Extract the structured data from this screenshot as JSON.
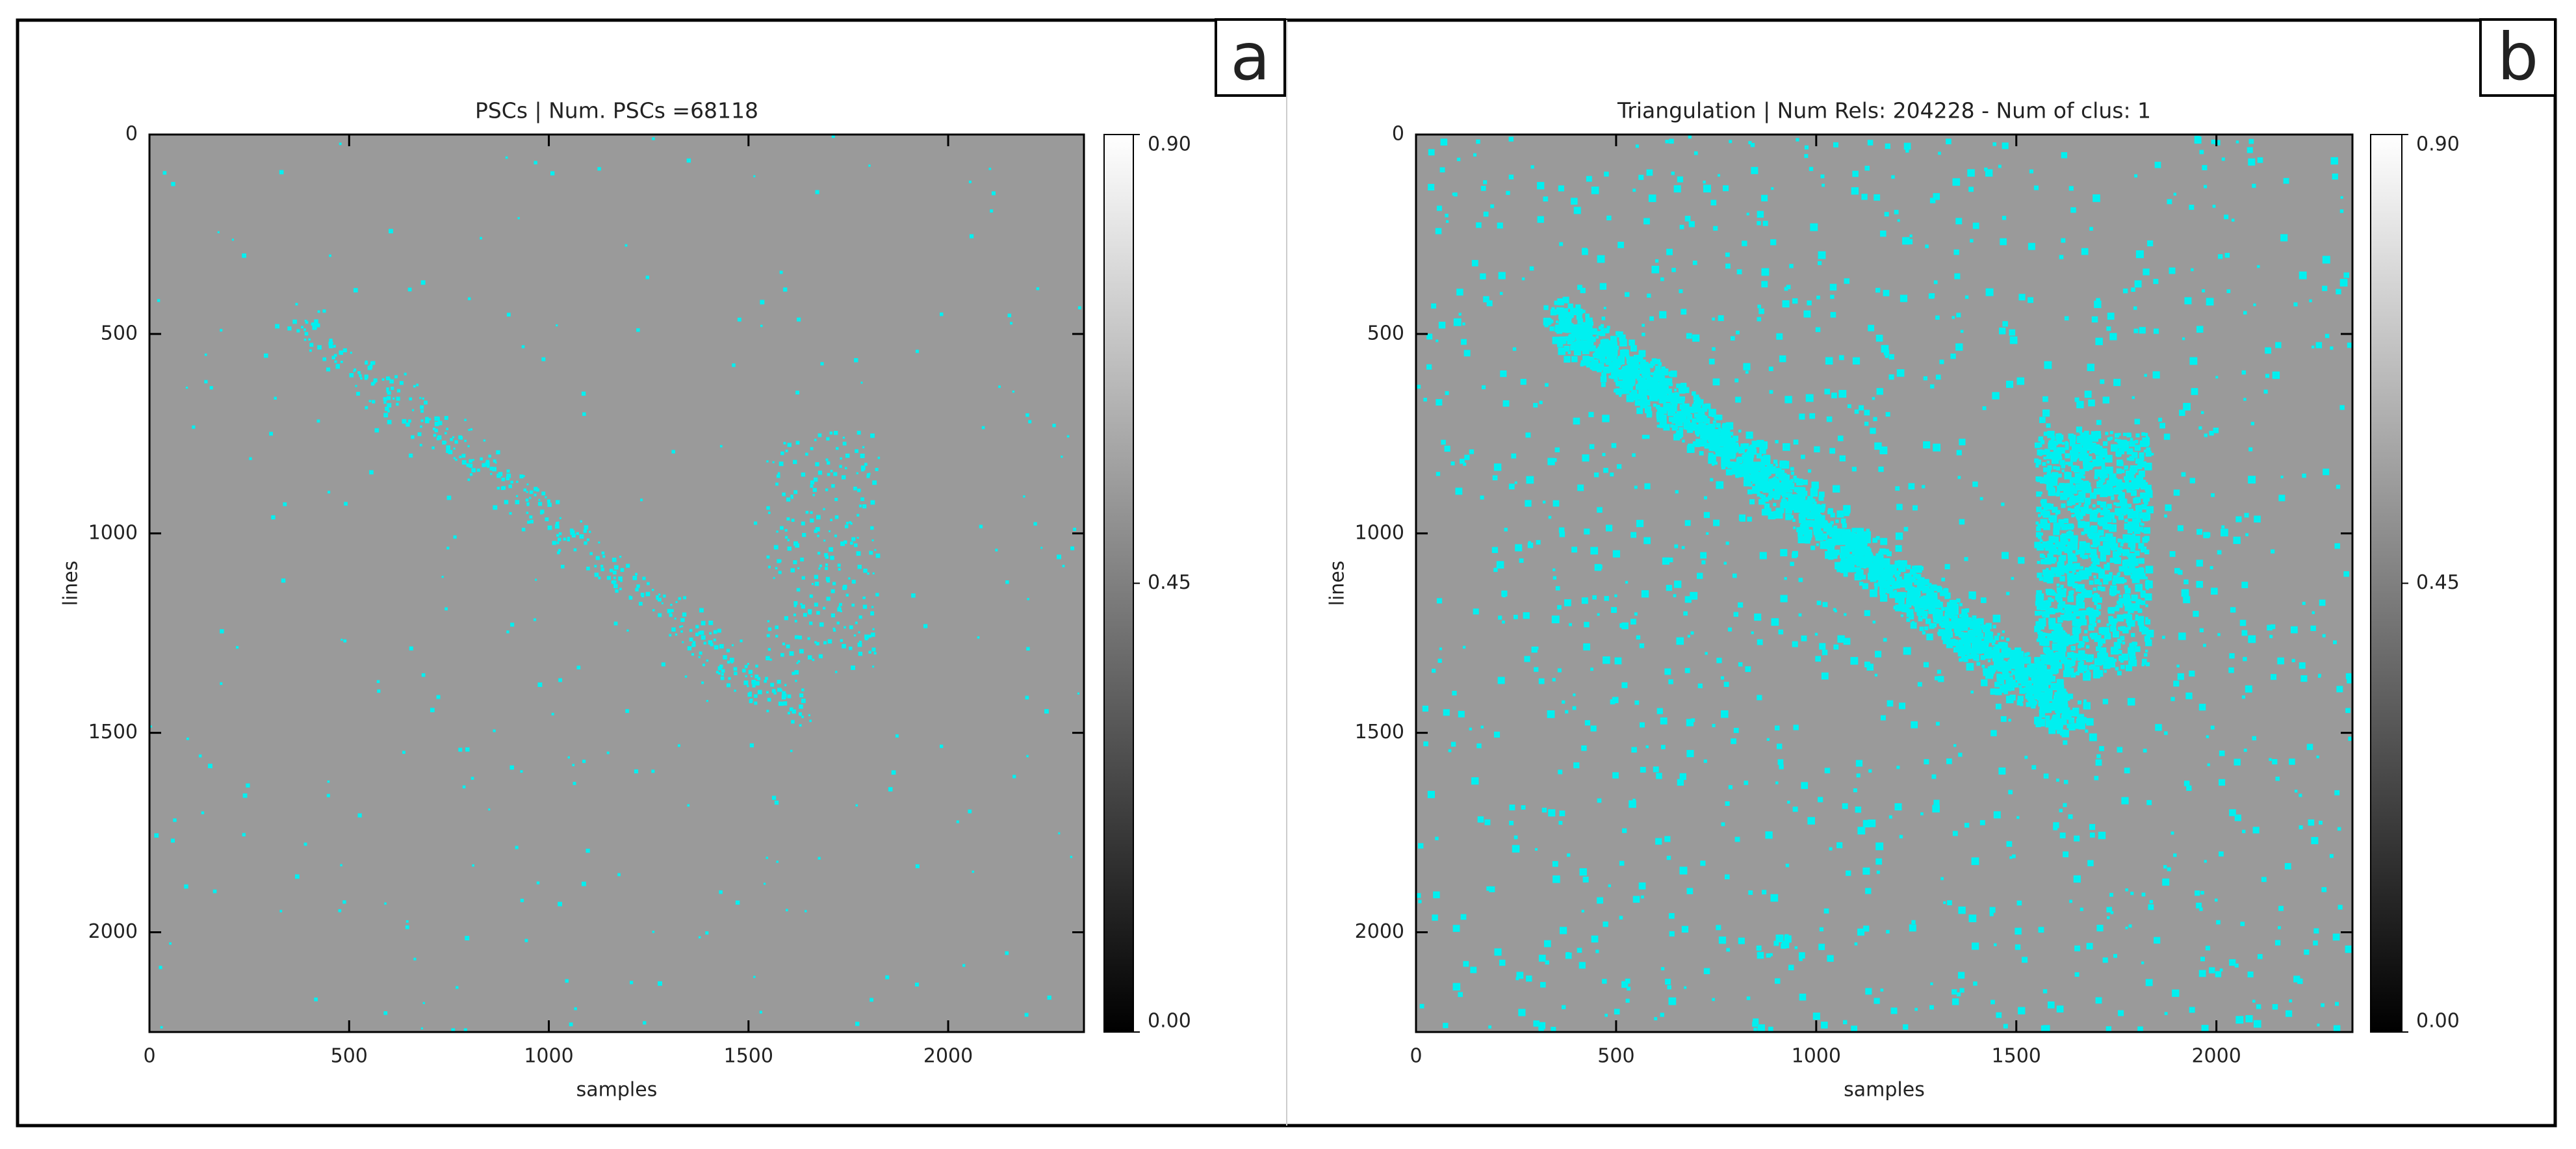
{
  "chart_data": [
    {
      "type": "heatmap",
      "panel_label": "a",
      "title": "PSCs | Num. PSCs =68118",
      "xlabel": "samples",
      "ylabel": "lines",
      "xlim": [
        0,
        2340
      ],
      "ylim": [
        2250,
        0
      ],
      "xticks": [
        0,
        500,
        1000,
        1500,
        2000
      ],
      "yticks": [
        0,
        500,
        1000,
        1500,
        2000
      ],
      "clim": [
        0,
        0.9
      ],
      "cticks": [
        {
          "value": 0,
          "label": "0.00"
        },
        {
          "value": 0.45,
          "label": "0.45"
        },
        {
          "value": 0.9,
          "label": "0.90"
        }
      ],
      "background_color": "#9a9a9a",
      "point_color": "#00f0f0"
    },
    {
      "type": "heatmap",
      "panel_label": "b",
      "title": "Triangulation | Num Rels: 204228 - Num of clus: 1",
      "xlabel": "samples",
      "ylabel": "lines",
      "xlim": [
        0,
        2340
      ],
      "ylim": [
        2250,
        0
      ],
      "xticks": [
        0,
        500,
        1000,
        1500,
        2000
      ],
      "yticks": [
        0,
        500,
        1000,
        1500,
        2000
      ],
      "clim": [
        0,
        0.9
      ],
      "cticks": [
        {
          "value": 0,
          "label": "0.00"
        },
        {
          "value": 0.45,
          "label": "0.45"
        },
        {
          "value": 0.9,
          "label": "0.90"
        }
      ],
      "background_color": "#9a9a9a",
      "point_color": "#00f0f0"
    }
  ]
}
